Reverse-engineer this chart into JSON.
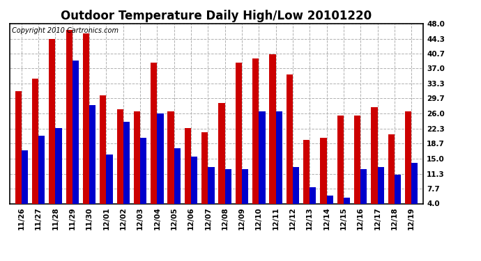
{
  "title": "Outdoor Temperature Daily High/Low 20101220",
  "copyright_text": "Copyright 2010 Cartronics.com",
  "categories": [
    "11/26",
    "11/27",
    "11/28",
    "11/29",
    "11/30",
    "12/01",
    "12/02",
    "12/03",
    "12/04",
    "12/05",
    "12/06",
    "12/07",
    "12/08",
    "12/09",
    "12/10",
    "12/11",
    "12/12",
    "12/13",
    "12/14",
    "12/15",
    "12/16",
    "12/17",
    "12/18",
    "12/19"
  ],
  "highs": [
    31.5,
    34.5,
    44.3,
    46.5,
    45.5,
    30.5,
    27.0,
    26.5,
    38.5,
    26.5,
    22.5,
    21.5,
    28.5,
    38.5,
    39.5,
    40.5,
    35.5,
    19.5,
    20.0,
    25.5,
    25.5,
    27.5,
    21.0,
    26.5
  ],
  "lows": [
    17.0,
    20.5,
    22.5,
    39.0,
    28.0,
    16.0,
    24.0,
    20.0,
    26.0,
    17.5,
    15.5,
    13.0,
    12.5,
    12.5,
    26.5,
    26.5,
    13.0,
    8.0,
    6.0,
    5.5,
    12.5,
    13.0,
    11.0,
    14.0
  ],
  "high_color": "#cc0000",
  "low_color": "#0000cc",
  "ylim": [
    4.0,
    48.0
  ],
  "yticks": [
    4.0,
    7.7,
    11.3,
    15.0,
    18.7,
    22.3,
    26.0,
    29.7,
    33.3,
    37.0,
    40.7,
    44.3,
    48.0
  ],
  "background_color": "#ffffff",
  "grid_color": "#b0b0b0",
  "bar_width": 0.38,
  "title_fontsize": 12,
  "tick_fontsize": 7.5,
  "copyright_fontsize": 7
}
